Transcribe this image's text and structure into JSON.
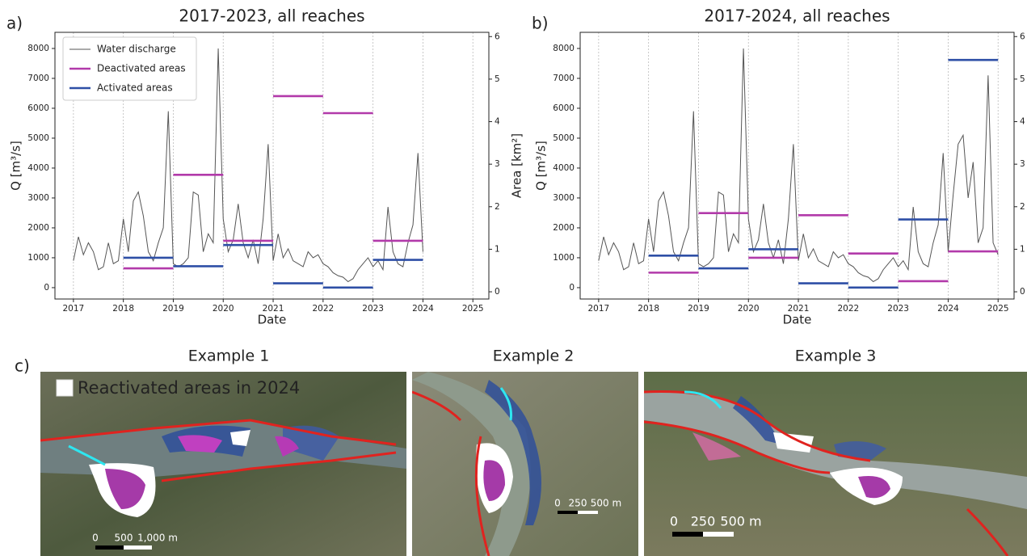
{
  "chart_data": [
    {
      "type": "line",
      "panel_label": "a)",
      "title": "2017-2023, all reaches",
      "xlabel": "Date",
      "ylabel": "Q [m³/s]",
      "y2label": "Area [km²]",
      "xlim": [
        2016.63,
        2025.32
      ],
      "ylim": [
        -380,
        8540
      ],
      "y2lim": [
        -0.17,
        6.1
      ],
      "xticks": [
        2017,
        2018,
        2019,
        2020,
        2021,
        2022,
        2023,
        2024,
        2025
      ],
      "yticks": [
        0,
        1000,
        2000,
        3000,
        4000,
        5000,
        6000,
        7000,
        8000
      ],
      "y2ticks": [
        0,
        1,
        2,
        3,
        4,
        5,
        6
      ],
      "grid": "x",
      "legend": "upper left",
      "series": [
        {
          "name": "Water discharge",
          "color": "#555555",
          "kind": "line",
          "x": [
            2017,
            2017.1,
            2017.2,
            2017.3,
            2017.4,
            2017.5,
            2017.6,
            2017.7,
            2017.8,
            2017.9,
            2018,
            2018.1,
            2018.2,
            2018.3,
            2018.4,
            2018.5,
            2018.6,
            2018.7,
            2018.8,
            2018.9,
            2019,
            2019.1,
            2019.2,
            2019.3,
            2019.4,
            2019.5,
            2019.6,
            2019.7,
            2019.8,
            2019.9,
            2020,
            2020.1,
            2020.2,
            2020.3,
            2020.4,
            2020.5,
            2020.6,
            2020.7,
            2020.8,
            2020.9,
            2021,
            2021.1,
            2021.2,
            2021.3,
            2021.4,
            2021.5,
            2021.6,
            2021.7,
            2021.8,
            2021.9,
            2022,
            2022.1,
            2022.2,
            2022.3,
            2022.4,
            2022.5,
            2022.6,
            2022.7,
            2022.8,
            2022.9,
            2023,
            2023.1,
            2023.2,
            2023.3,
            2023.4,
            2023.5,
            2023.6,
            2023.7,
            2023.8,
            2023.9,
            2024
          ],
          "values": [
            900,
            1700,
            1100,
            1500,
            1200,
            600,
            700,
            1500,
            800,
            900,
            2300,
            1200,
            2900,
            3200,
            2400,
            1200,
            900,
            1500,
            2000,
            5900,
            800,
            700,
            800,
            1000,
            3200,
            3100,
            1200,
            1800,
            1500,
            8000,
            2300,
            1200,
            1600,
            2800,
            1500,
            1000,
            1600,
            800,
            2300,
            4800,
            900,
            1800,
            1000,
            1300,
            900,
            800,
            700,
            1200,
            1000,
            1100,
            800,
            700,
            500,
            400,
            350,
            200,
            300,
            600,
            800,
            1000,
            700,
            900,
            600,
            2700,
            1200,
            800,
            700,
            1500,
            2100,
            4500,
            1200
          ]
        },
        {
          "name": "Deactivated areas",
          "color": "#b23aaa",
          "kind": "segments",
          "axis": "y2",
          "x": [
            2018,
            2019,
            2020,
            2021,
            2022,
            2023
          ],
          "values": [
            0.55,
            2.75,
            1.2,
            4.6,
            4.2,
            1.2
          ]
        },
        {
          "name": "Activated areas",
          "color": "#2e4fa6",
          "kind": "segments",
          "axis": "y2",
          "x": [
            2018,
            2019,
            2020,
            2021,
            2022,
            2023
          ],
          "values": [
            0.8,
            0.6,
            1.1,
            0.2,
            0.1,
            0.75
          ]
        }
      ]
    },
    {
      "type": "line",
      "panel_label": "b)",
      "title": "2017-2024, all reaches",
      "xlabel": "Date",
      "ylabel": "Q [m³/s]",
      "xlim": [
        2016.63,
        2025.32
      ],
      "ylim": [
        -380,
        8540
      ],
      "y2lim": [
        -0.17,
        6.1
      ],
      "xticks": [
        2017,
        2018,
        2019,
        2020,
        2021,
        2022,
        2023,
        2024,
        2025
      ],
      "yticks": [
        0,
        1000,
        2000,
        3000,
        4000,
        5000,
        6000,
        7000,
        8000
      ],
      "y2ticks": [
        0,
        1,
        2,
        3,
        4,
        5,
        6
      ],
      "grid": "x",
      "series": [
        {
          "color": "#555555",
          "kind": "line",
          "x": [
            2017,
            2017.1,
            2017.2,
            2017.3,
            2017.4,
            2017.5,
            2017.6,
            2017.7,
            2017.8,
            2017.9,
            2018,
            2018.1,
            2018.2,
            2018.3,
            2018.4,
            2018.5,
            2018.6,
            2018.7,
            2018.8,
            2018.9,
            2019,
            2019.1,
            2019.2,
            2019.3,
            2019.4,
            2019.5,
            2019.6,
            2019.7,
            2019.8,
            2019.9,
            2020,
            2020.1,
            2020.2,
            2020.3,
            2020.4,
            2020.5,
            2020.6,
            2020.7,
            2020.8,
            2020.9,
            2021,
            2021.1,
            2021.2,
            2021.3,
            2021.4,
            2021.5,
            2021.6,
            2021.7,
            2021.8,
            2021.9,
            2022,
            2022.1,
            2022.2,
            2022.3,
            2022.4,
            2022.5,
            2022.6,
            2022.7,
            2022.8,
            2022.9,
            2023,
            2023.1,
            2023.2,
            2023.3,
            2023.4,
            2023.5,
            2023.6,
            2023.7,
            2023.8,
            2023.9,
            2024,
            2024.1,
            2024.2,
            2024.3,
            2024.4,
            2024.5,
            2024.6,
            2024.7,
            2024.8,
            2024.9,
            2025
          ],
          "values": [
            900,
            1700,
            1100,
            1500,
            1200,
            600,
            700,
            1500,
            800,
            900,
            2300,
            1200,
            2900,
            3200,
            2400,
            1200,
            900,
            1500,
            2000,
            5900,
            800,
            700,
            800,
            1000,
            3200,
            3100,
            1200,
            1800,
            1500,
            8000,
            2300,
            1200,
            1600,
            2800,
            1500,
            1000,
            1600,
            800,
            2300,
            4800,
            900,
            1800,
            1000,
            1300,
            900,
            800,
            700,
            1200,
            1000,
            1100,
            800,
            700,
            500,
            400,
            350,
            200,
            300,
            600,
            800,
            1000,
            700,
            900,
            600,
            2700,
            1200,
            800,
            700,
            1500,
            2100,
            4500,
            1200,
            3100,
            4800,
            5100,
            3000,
            4200,
            1500,
            2000,
            7100,
            1500,
            1100
          ]
        },
        {
          "color": "#b23aaa",
          "kind": "segments",
          "axis": "y2",
          "x": [
            2018,
            2019,
            2020,
            2021,
            2022,
            2023,
            2024
          ],
          "values": [
            0.45,
            1.85,
            0.8,
            1.8,
            0.9,
            0.25,
            0.95
          ]
        },
        {
          "color": "#2e4fa6",
          "kind": "segments",
          "axis": "y2",
          "x": [
            2018,
            2019,
            2020,
            2021,
            2022,
            2023,
            2024
          ],
          "values": [
            0.85,
            0.55,
            1.0,
            0.2,
            0.1,
            1.7,
            5.45
          ]
        }
      ]
    }
  ],
  "panel_c": {
    "label": "c)",
    "examples": [
      {
        "title": "Example 1",
        "legend": "Reactivated areas in 2024",
        "scale": [
          "0",
          "500",
          "1,000 m"
        ]
      },
      {
        "title": "Example 2",
        "scale": [
          "0",
          "250",
          "500 m"
        ]
      },
      {
        "title": "Example 3",
        "scale": [
          "0",
          "250",
          "500 m"
        ]
      }
    ]
  }
}
